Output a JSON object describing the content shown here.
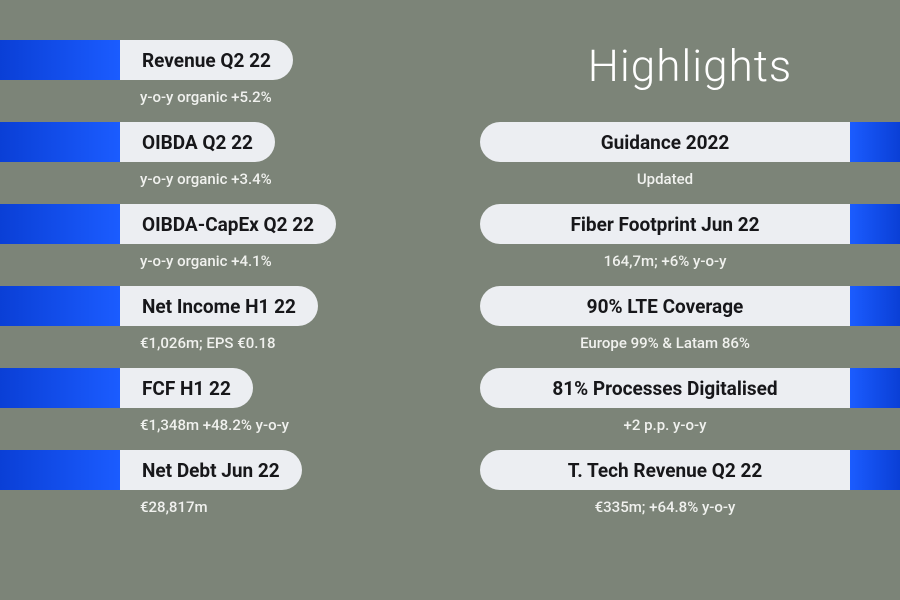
{
  "title": "Highlights",
  "colors": {
    "background": "#7c8478",
    "bar_gradient_start": "#0a3fd6",
    "bar_gradient_end": "#1b5cff",
    "pill_bg": "#eceef2",
    "pill_text": "#17171a",
    "sub_text": "#f0f1ee",
    "title_text": "#ffffff"
  },
  "left": [
    {
      "label": "Revenue Q2 22",
      "sub": "y-o-y organic +5.2%"
    },
    {
      "label": "OIBDA Q2 22",
      "sub": "y-o-y organic +3.4%"
    },
    {
      "label": "OIBDA-CapEx Q2 22",
      "sub": "y-o-y organic +4.1%"
    },
    {
      "label": "Net Income H1 22",
      "sub": "€1,026m; EPS €0.18"
    },
    {
      "label": "FCF H1 22",
      "sub": "€1,348m +48.2% y-o-y"
    },
    {
      "label": "Net Debt Jun 22",
      "sub": "€28,817m"
    }
  ],
  "right": [
    {
      "label": "Guidance 2022",
      "sub": "Updated"
    },
    {
      "label": "Fiber Footprint Jun 22",
      "sub": "164,7m; +6% y-o-y"
    },
    {
      "label": "90% LTE Coverage",
      "sub": "Europe 99% & Latam 86%"
    },
    {
      "label": "81% Processes Digitalised",
      "sub": "+2 p.p. y-o-y"
    },
    {
      "label": "T. Tech Revenue Q2 22",
      "sub": "€335m; +64.8% y-o-y"
    }
  ]
}
